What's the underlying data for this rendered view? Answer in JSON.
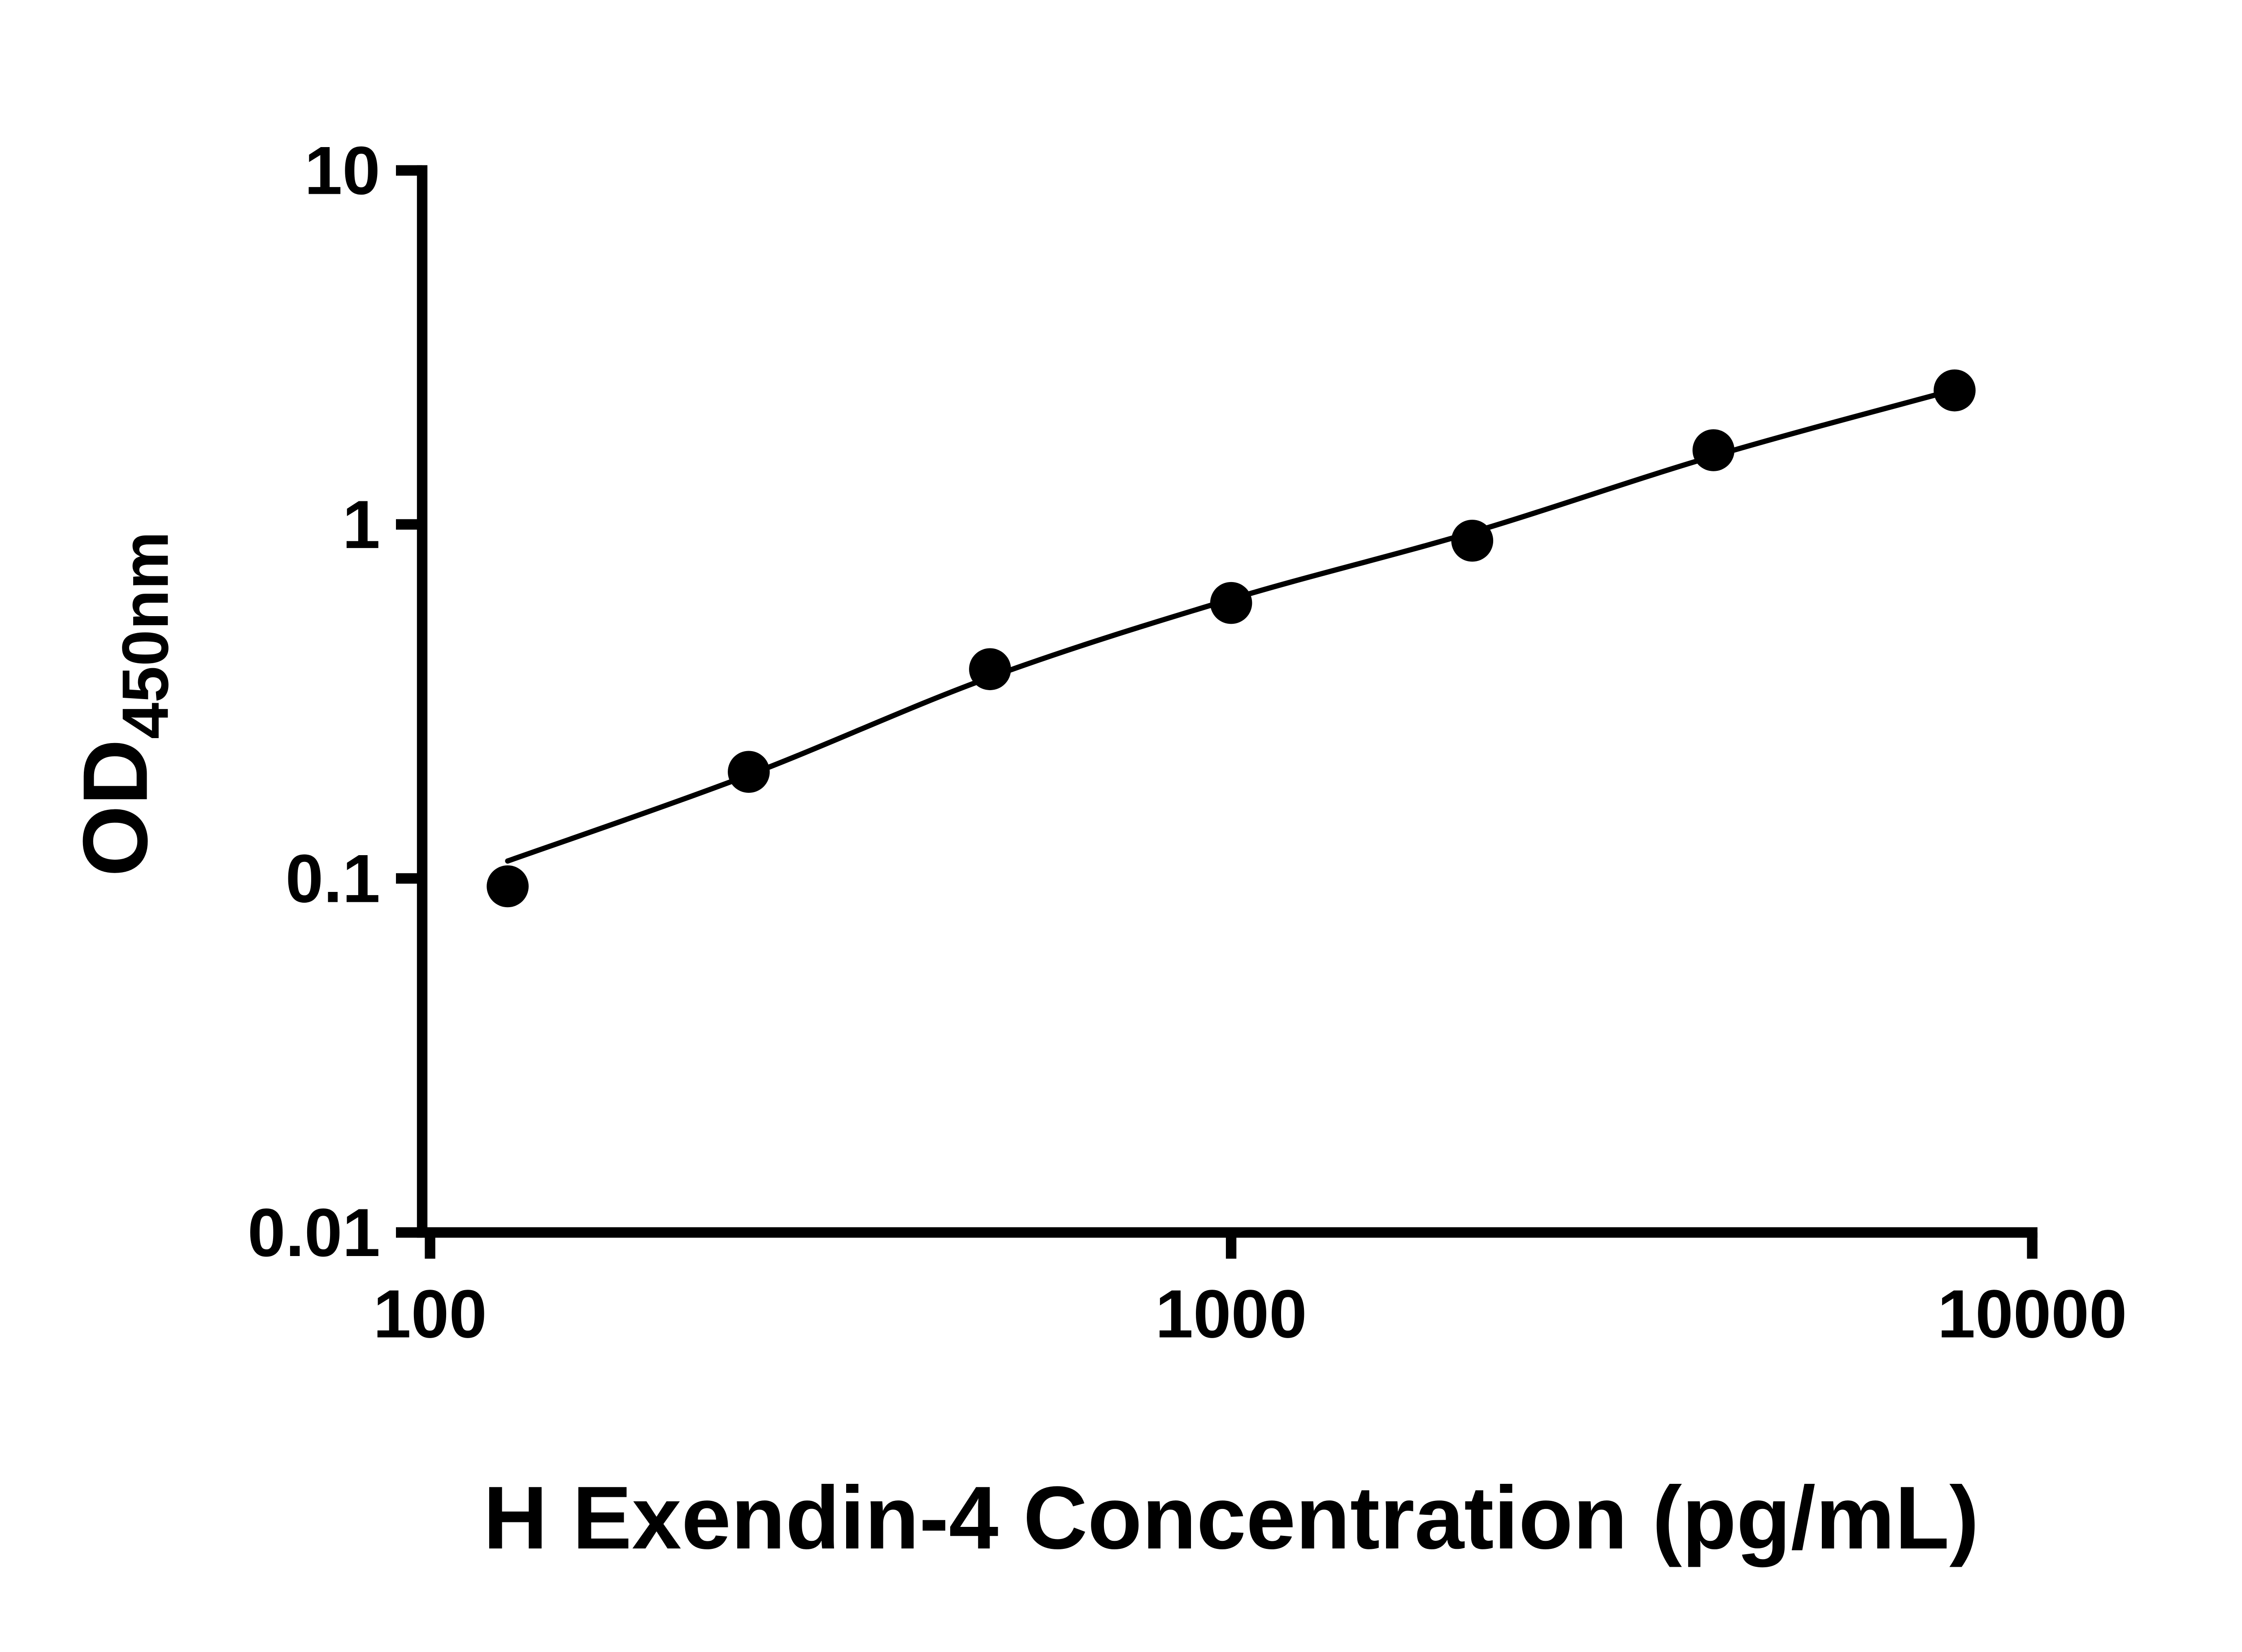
{
  "chart_data": {
    "type": "scatter",
    "title": "",
    "xlabel": "H Exendin-4 Concentration (pg/mL)",
    "ylabel_main": "OD",
    "ylabel_sub": "450nm",
    "x_scale": "log",
    "y_scale": "log",
    "xlim": [
      100,
      10000
    ],
    "ylim": [
      0.01,
      10
    ],
    "x_ticks": [
      100,
      1000,
      10000
    ],
    "x_tick_labels": [
      "100",
      "1000",
      "10000"
    ],
    "y_ticks": [
      10,
      1,
      0.1,
      0.01
    ],
    "y_tick_labels": [
      "10",
      "1",
      "0.1",
      "0.01"
    ],
    "grid": false,
    "legend": "none",
    "colors": {
      "background": "#ffffff",
      "axis": "#000000",
      "text": "#000000",
      "marker": "#000000",
      "fit_line": "#000000"
    },
    "series": [
      {
        "name": "standard-curve-points",
        "marker": "filled-circle",
        "x": [
          125,
          250,
          500,
          1000,
          2000,
          4000,
          8000
        ],
        "y": [
          0.095,
          0.2,
          0.39,
          0.6,
          0.9,
          1.62,
          2.39
        ]
      }
    ],
    "fit_curve": {
      "name": "four-parameter-logistic-fit",
      "x": [
        125,
        250,
        500,
        1000,
        2000,
        4000,
        8000
      ],
      "y": [
        0.112,
        0.196,
        0.37,
        0.615,
        0.95,
        1.56,
        2.4
      ]
    }
  }
}
